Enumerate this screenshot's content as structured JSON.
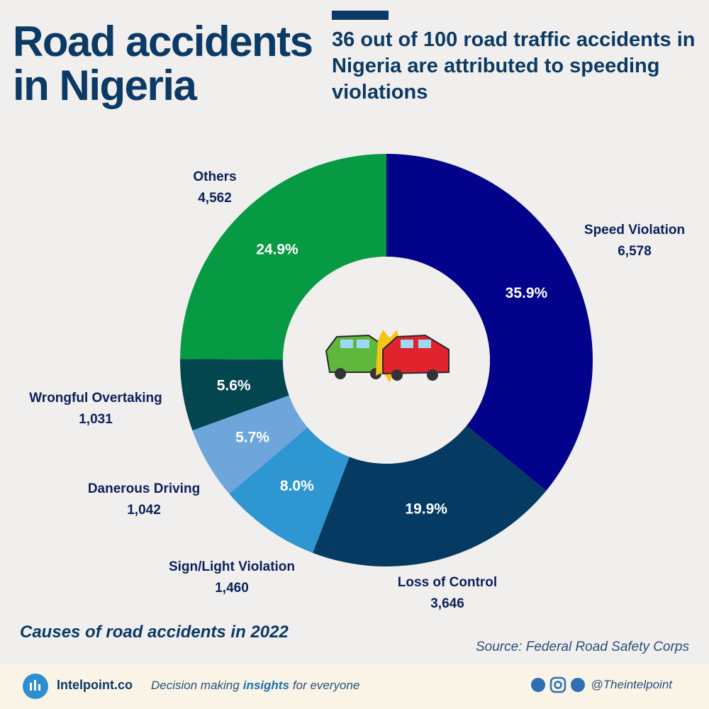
{
  "header": {
    "title": "Road accidents in Nigeria",
    "subtitle": "36 out of 100 road traffic accidents in Nigeria are attributed to speeding violations"
  },
  "chart_data": {
    "type": "pie",
    "donut": true,
    "categories": [
      "Speed Violation",
      "Loss of Control",
      "Sign/Light Violation",
      "Danerous Driving",
      "Wrongful Overtaking",
      "Others"
    ],
    "values": [
      6578,
      3646,
      1460,
      1042,
      1031,
      4562
    ],
    "value_labels": [
      "6,578",
      "3,646",
      "1,460",
      "1,042",
      "1,031",
      "4,562"
    ],
    "percent_values": [
      35.9,
      19.9,
      8.0,
      5.7,
      5.6,
      24.9
    ],
    "percent_labels": [
      "35.9%",
      "19.9%",
      "8.0%",
      "5.7%",
      "5.6%",
      "24.9%"
    ],
    "colors": [
      "#02028a",
      "#053a63",
      "#2e96d1",
      "#6ea6dc",
      "#044650",
      "#069a42"
    ]
  },
  "caption": "Causes of road accidents in 2022",
  "source": "Source: Federal Road Safety Corps",
  "footer": {
    "brand": "Intelpoint.co",
    "tagline": [
      "Decision making",
      "insights",
      "for everyone"
    ],
    "handle": "@Theintelpoint"
  }
}
